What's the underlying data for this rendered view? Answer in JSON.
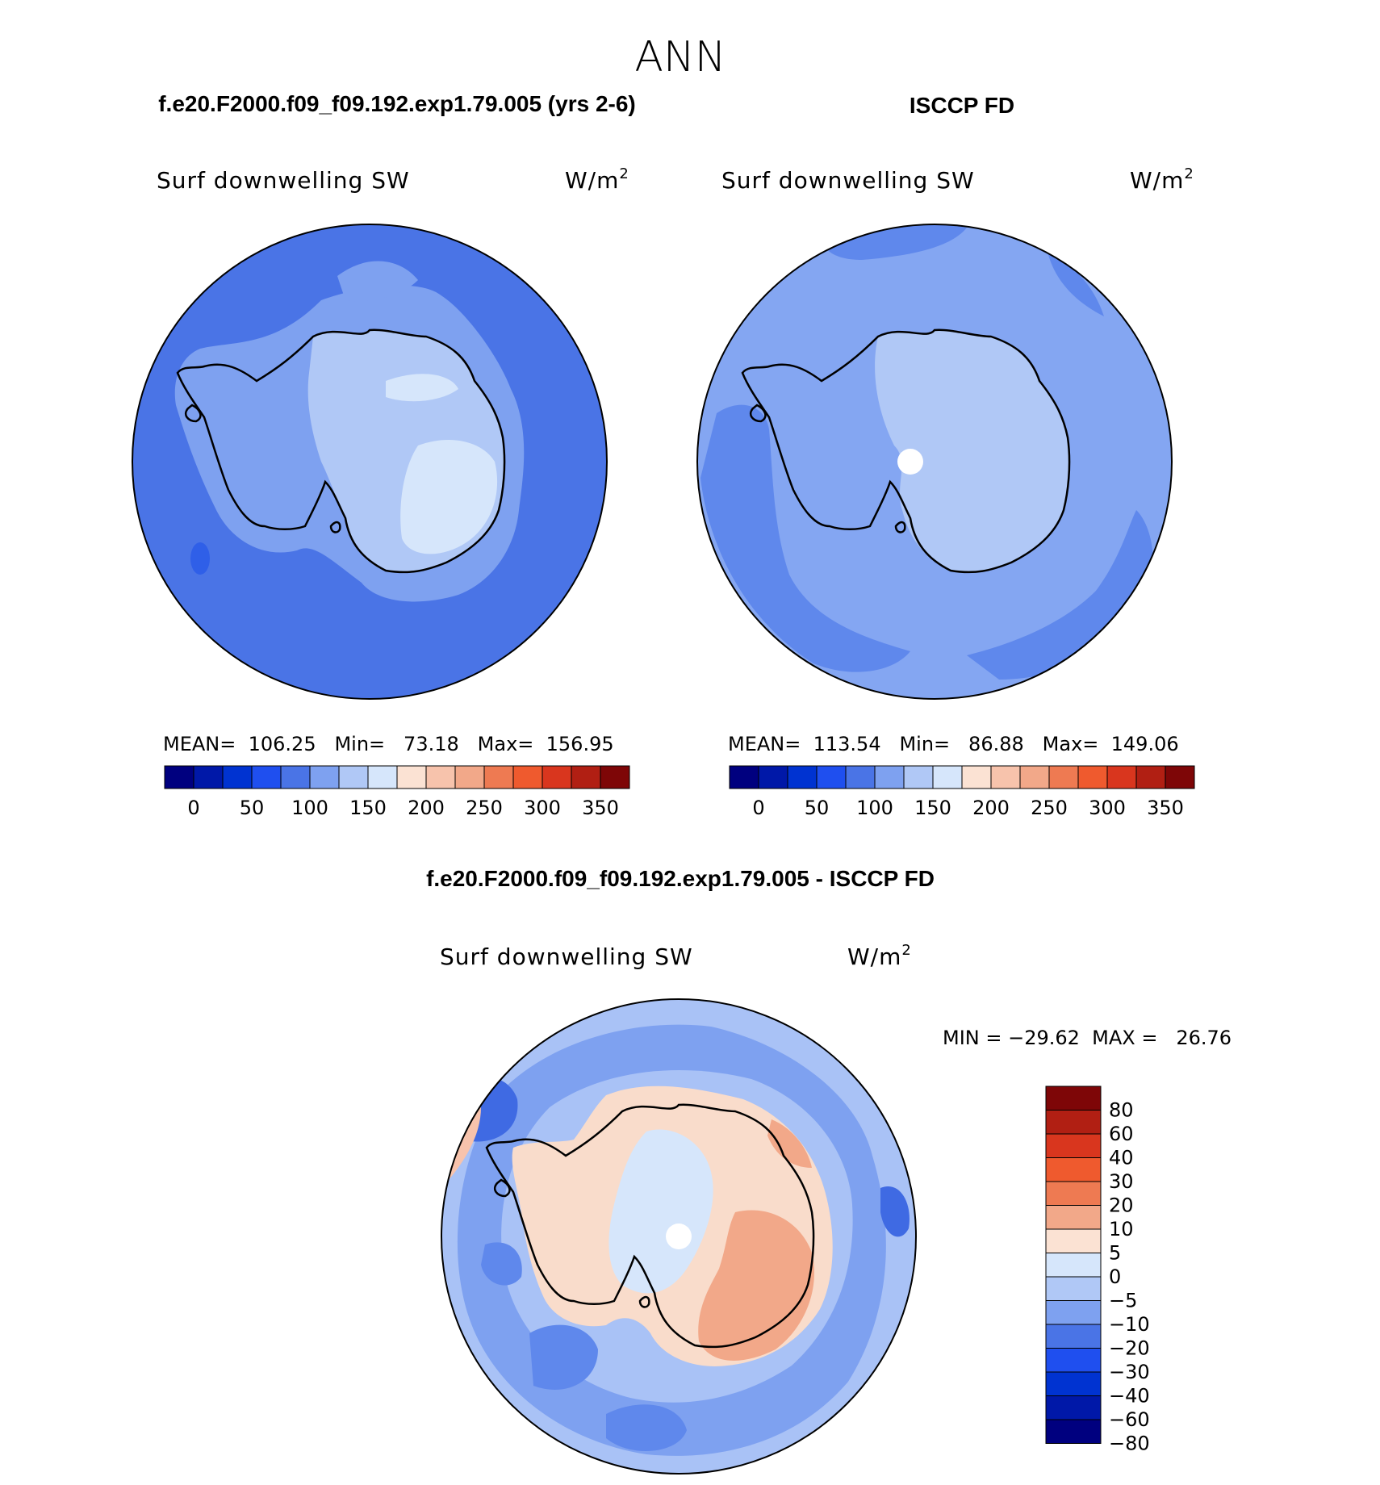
{
  "season": "ANN",
  "colors": {
    "ocean_left": "#4a74e6",
    "ocean_light": "#7ea1f0",
    "shelf": "#8fb0f3",
    "ice_light": "#b7cdf7",
    "ice_lightest": "#d5e5fb",
    "ocean_right": "#84a6f2",
    "ocean_right_dark": "#5f88ec",
    "diff_base": "#a9c2f6",
    "diff_ocean_blue": "#6b92ee",
    "diff_dark_blue": "#3f6ae3",
    "diff_ice": "#f9dccb",
    "diff_ice_orange": "#f2a889",
    "coast": "#000000"
  },
  "panels": [
    {
      "title": "f.e20.F2000.f09_f09.192.exp1.79.005 (yrs 2-6)",
      "variable": "Surf downwelling SW",
      "units": "W/m",
      "units_sup": "2",
      "stats": "MEAN=  106.25   Min=   73.18   Max=  156.95"
    },
    {
      "title": "ISCCP FD",
      "variable": "Surf downwelling SW",
      "units": "W/m",
      "units_sup": "2",
      "stats": "MEAN=  113.54   Min=   86.88   Max=  149.06"
    }
  ],
  "colorbar_main": {
    "colors": [
      "#00007f",
      "#0018a8",
      "#0033d1",
      "#1f4fef",
      "#4a74e6",
      "#7ea1f0",
      "#b0c8f6",
      "#d6e6fb",
      "#fbe2d3",
      "#f7c3ac",
      "#f2a889",
      "#ee7a52",
      "#ef5a2e",
      "#d9361e",
      "#b11f13",
      "#7e0607"
    ],
    "labels": [
      "0",
      "50",
      "100",
      "150",
      "200",
      "250",
      "300",
      "350"
    ]
  },
  "diff": {
    "title": "f.e20.F2000.f09_f09.192.exp1.79.005 - ISCCP FD",
    "variable": "Surf downwelling SW",
    "units": "W/m",
    "units_sup": "2",
    "minmax": "MIN = −29.62  MAX =   26.76",
    "colorbar": {
      "colors": [
        "#7e0607",
        "#b11f13",
        "#d9361e",
        "#ef5a2e",
        "#ee7a52",
        "#f2a889",
        "#fbe2d3",
        "#d6e6fb",
        "#b0c8f6",
        "#7ea1f0",
        "#4a74e6",
        "#1f4fef",
        "#0033d1",
        "#0018a8",
        "#00007f"
      ],
      "labels": [
        "80",
        "60",
        "40",
        "30",
        "20",
        "10",
        "5",
        "0",
        "−5",
        "−10",
        "−20",
        "−30",
        "−40",
        "−60",
        "−80"
      ]
    }
  }
}
